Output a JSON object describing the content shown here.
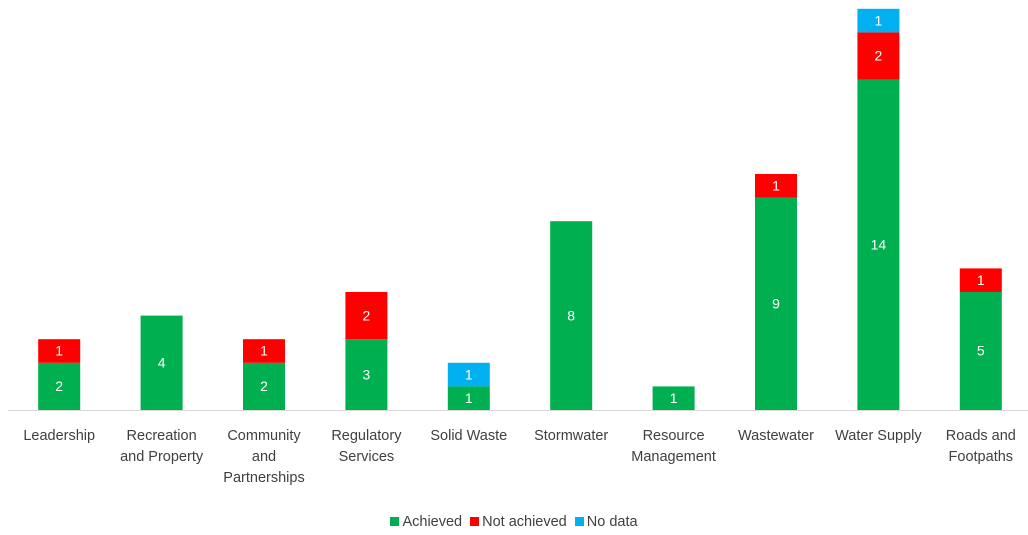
{
  "chart_data": {
    "type": "stacked_bar",
    "categories": [
      "Leadership",
      "Recreation and Property",
      "Community and Partnerships",
      "Regulatory Services",
      "Solid Waste",
      "Stormwater",
      "Resource Management",
      "Wastewater",
      "Water Supply",
      "Roads and Footpaths"
    ],
    "series": [
      {
        "name": "Achieved",
        "color": "#00b050",
        "values": [
          2,
          4,
          2,
          3,
          1,
          8,
          1,
          9,
          14,
          5
        ]
      },
      {
        "name": "Not achieved",
        "color": "#ff0000",
        "values": [
          1,
          0,
          1,
          2,
          0,
          0,
          0,
          1,
          2,
          1
        ]
      },
      {
        "name": "No data",
        "color": "#00b0f0",
        "values": [
          0,
          0,
          0,
          0,
          1,
          0,
          0,
          0,
          1,
          0
        ]
      }
    ],
    "legend": "bottom"
  }
}
